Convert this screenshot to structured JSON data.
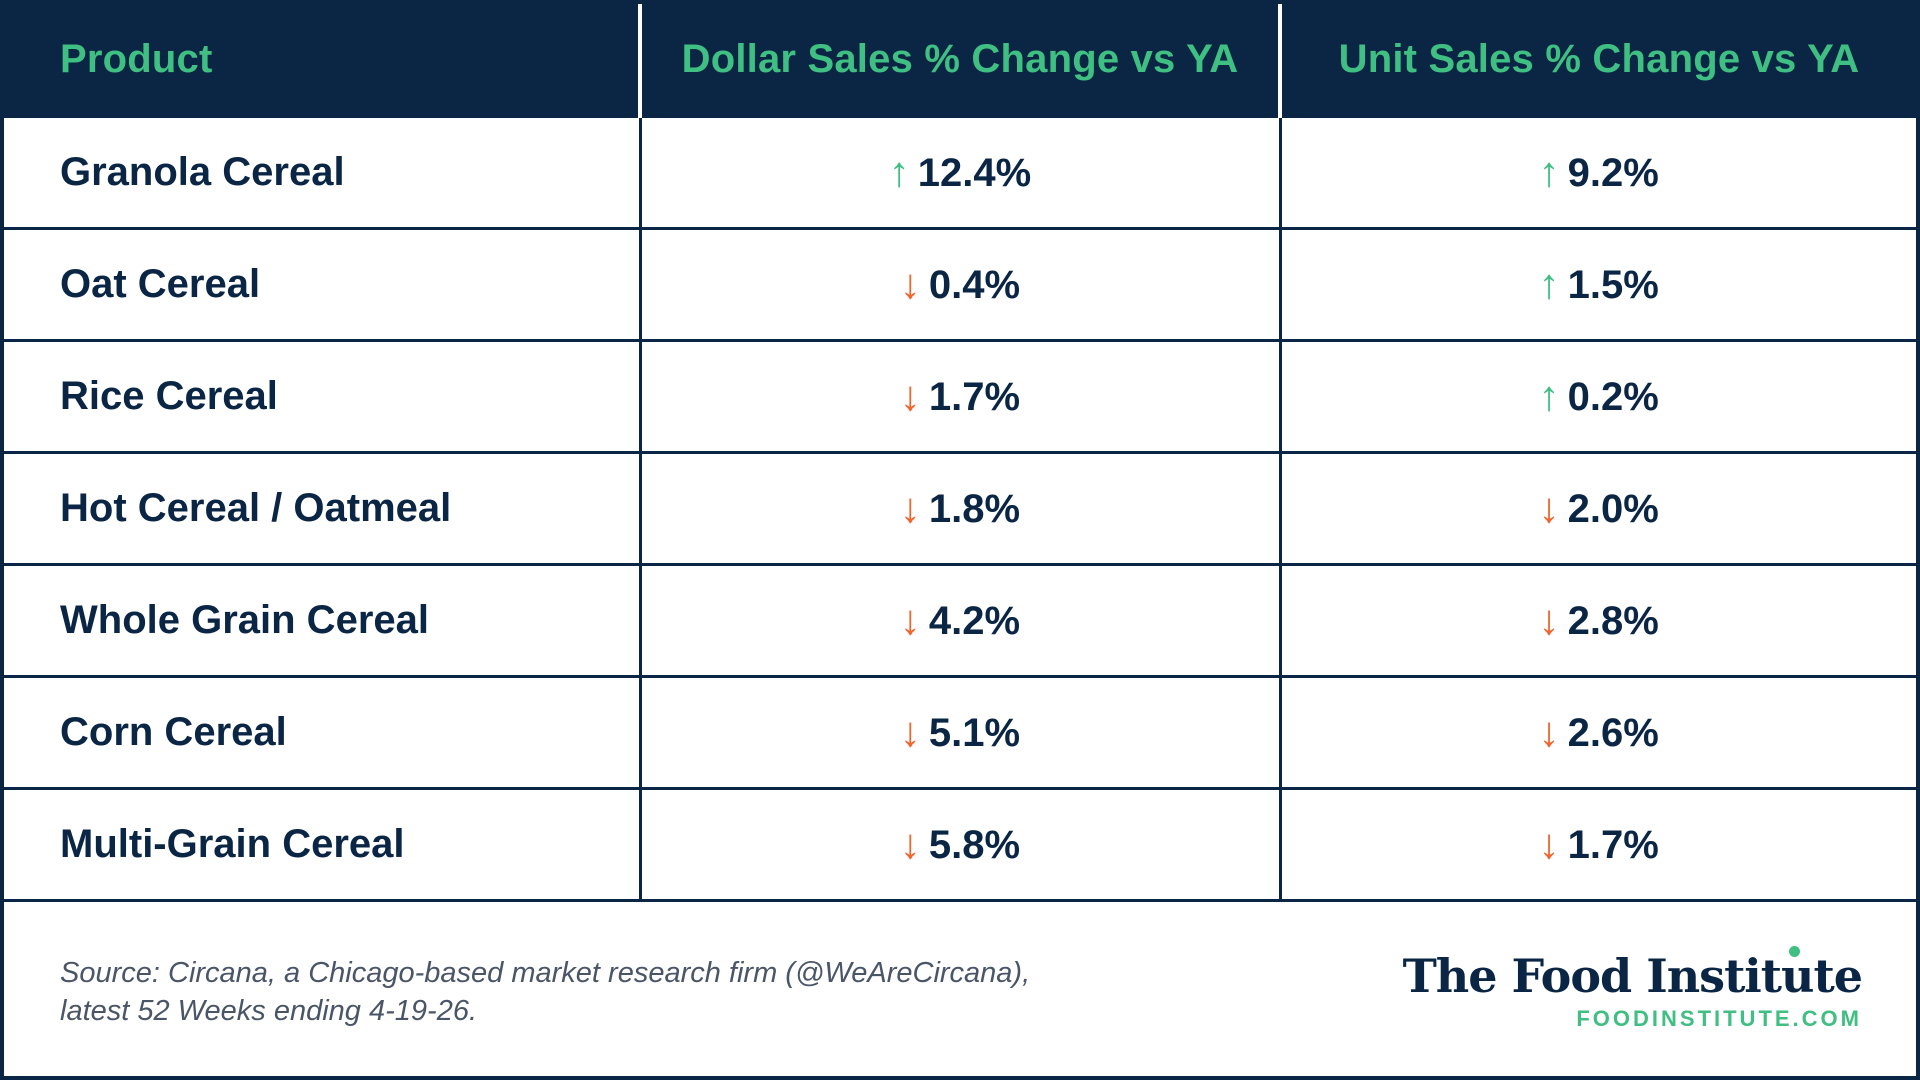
{
  "table": {
    "headers": [
      "Product",
      "Dollar Sales % Change vs YA",
      "Unit Sales % Change vs YA"
    ],
    "rows": [
      {
        "product": "Granola Cereal",
        "dollar": {
          "dir": "up",
          "arrow": "↑",
          "value": "12.4%"
        },
        "unit": {
          "dir": "up",
          "arrow": "↑",
          "value": "9.2%"
        }
      },
      {
        "product": "Oat Cereal",
        "dollar": {
          "dir": "down",
          "arrow": "↓",
          "value": "0.4%"
        },
        "unit": {
          "dir": "up",
          "arrow": "↑",
          "value": "1.5%"
        }
      },
      {
        "product": "Rice Cereal",
        "dollar": {
          "dir": "down",
          "arrow": "↓",
          "value": "1.7%"
        },
        "unit": {
          "dir": "up",
          "arrow": "↑",
          "value": "0.2%"
        }
      },
      {
        "product": "Hot Cereal / Oatmeal",
        "dollar": {
          "dir": "down",
          "arrow": "↓",
          "value": "1.8%"
        },
        "unit": {
          "dir": "down",
          "arrow": "↓",
          "value": "2.0%"
        }
      },
      {
        "product": "Whole Grain Cereal",
        "dollar": {
          "dir": "down",
          "arrow": "↓",
          "value": "4.2%"
        },
        "unit": {
          "dir": "down",
          "arrow": "↓",
          "value": "2.8%"
        }
      },
      {
        "product": "Corn Cereal",
        "dollar": {
          "dir": "down",
          "arrow": "↓",
          "value": "5.1%"
        },
        "unit": {
          "dir": "down",
          "arrow": "↓",
          "value": "2.6%"
        }
      },
      {
        "product": "Multi-Grain Cereal",
        "dollar": {
          "dir": "down",
          "arrow": "↓",
          "value": "5.8%"
        },
        "unit": {
          "dir": "down",
          "arrow": "↓",
          "value": "1.7%"
        }
      }
    ]
  },
  "footer": {
    "source_line1": "Source: Circana, a Chicago-based market research firm (@WeAreCircana),",
    "source_line2": "latest 52 Weeks ending 4-19-26.",
    "brand_name": "The Food Institute",
    "brand_url": "FOODINSTITUTE.COM"
  },
  "colors": {
    "navy": "#0b2545",
    "green": "#3fbf82",
    "orange": "#f0642d",
    "source_gray": "#4a5568"
  },
  "icons": {
    "up": "arrow-up-icon",
    "down": "arrow-down-icon"
  }
}
